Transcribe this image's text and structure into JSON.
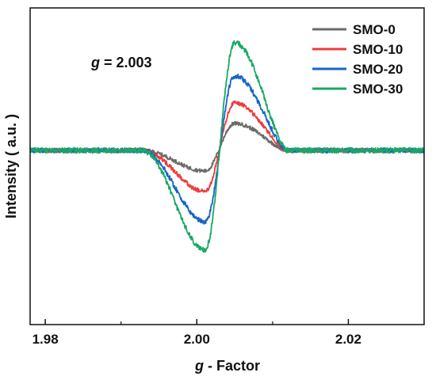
{
  "chart_data": {
    "type": "line",
    "xlabel_italic": "g",
    "xlabel_rest": " - Factor",
    "ylabel": "Intensity ( a.u. )",
    "annotation_italic": "g",
    "annotation_rest": " = 2.003",
    "annotation_placement": "upper-left",
    "xlim": [
      1.978,
      2.03
    ],
    "ylim": [
      -1.1,
      0.9
    ],
    "x_ticks": [
      "1.98",
      "2.00",
      "2.02"
    ],
    "x_tick_values": [
      1.98,
      2.0,
      2.02
    ],
    "y_ticks": "none",
    "grid": false,
    "legend_placement": "top-right",
    "signal": {
      "baseline": 0.0,
      "min_x": 2.0011,
      "max_x": 2.005,
      "crossing_x": 2.003,
      "noise": 0.012
    },
    "series": [
      {
        "name": "SMO-0",
        "color": "#6b6b6b",
        "min": -0.13,
        "max": 0.17
      },
      {
        "name": "SMO-10",
        "color": "#ee3b3b",
        "min": -0.26,
        "max": 0.3
      },
      {
        "name": "SMO-20",
        "color": "#1565c8",
        "min": -0.45,
        "max": 0.47
      },
      {
        "name": "SMO-30",
        "color": "#1aa864",
        "min": -0.63,
        "max": 0.68
      }
    ]
  }
}
